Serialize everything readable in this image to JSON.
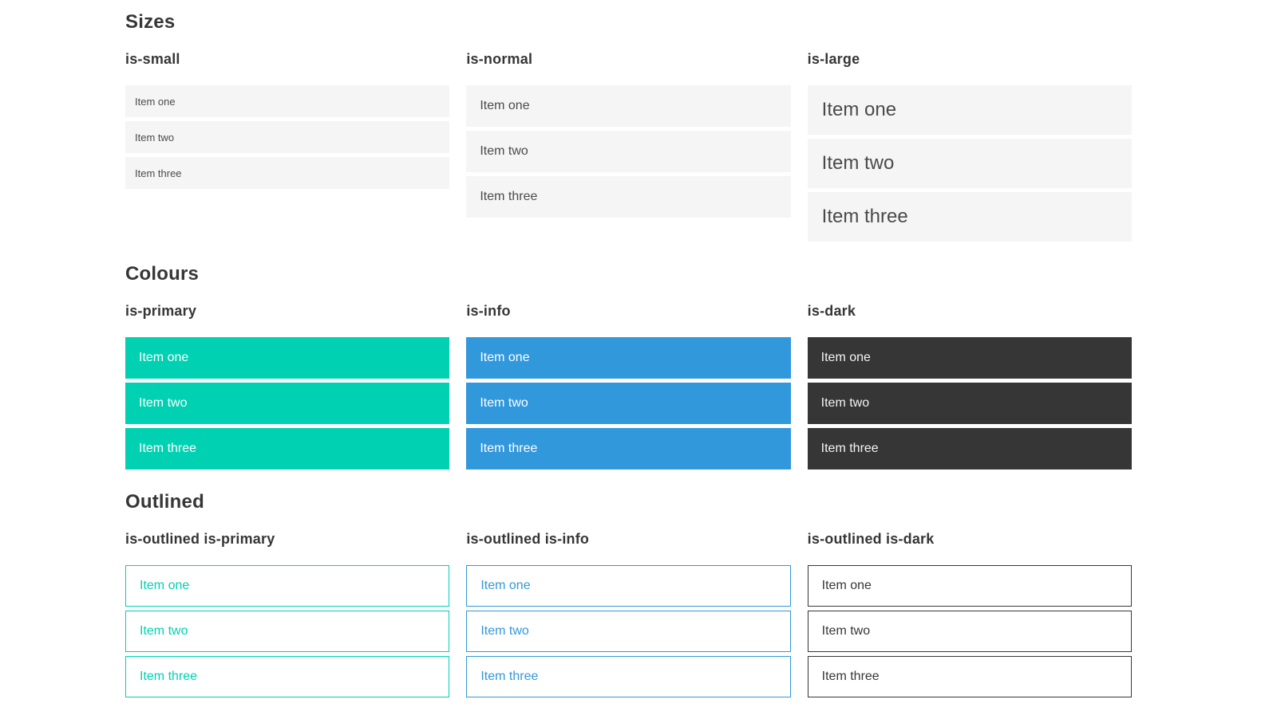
{
  "colors": {
    "primary": "#00d1b2",
    "info": "#3298dc",
    "dark": "#363636",
    "light-bg": "#f5f5f5",
    "item-text": "#4a4a4a",
    "heading-text": "#363636"
  },
  "sections": [
    {
      "title": "Sizes",
      "groups": [
        {
          "label": "is-small",
          "items": [
            "Item one",
            "Item two",
            "Item three"
          ]
        },
        {
          "label": "is-normal",
          "items": [
            "Item one",
            "Item two",
            "Item three"
          ]
        },
        {
          "label": "is-large",
          "items": [
            "Item one",
            "Item two",
            "Item three"
          ]
        }
      ]
    },
    {
      "title": "Colours",
      "groups": [
        {
          "label": "is-primary",
          "items": [
            "Item one",
            "Item two",
            "Item three"
          ]
        },
        {
          "label": "is-info",
          "items": [
            "Item one",
            "Item two",
            "Item three"
          ]
        },
        {
          "label": "is-dark",
          "items": [
            "Item one",
            "Item two",
            "Item three"
          ]
        }
      ]
    },
    {
      "title": "Outlined",
      "groups": [
        {
          "label": "is-outlined is-primary",
          "items": [
            "Item one",
            "Item two",
            "Item three"
          ]
        },
        {
          "label": "is-outlined is-info",
          "items": [
            "Item one",
            "Item two",
            "Item three"
          ]
        },
        {
          "label": "is-outlined is-dark",
          "items": [
            "Item one",
            "Item two",
            "Item three"
          ]
        }
      ]
    }
  ]
}
